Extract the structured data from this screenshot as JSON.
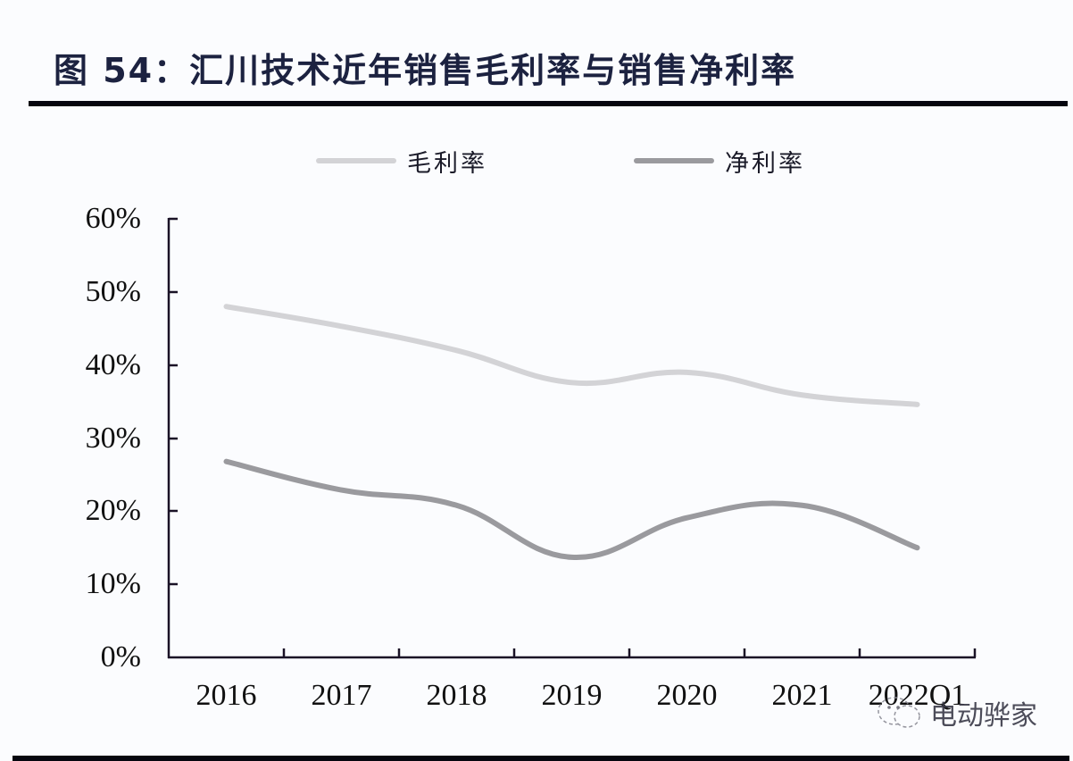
{
  "header": {
    "title": "图 54：汇川技术近年销售毛利率与销售净利率"
  },
  "legend": {
    "items": [
      {
        "label": "毛利率",
        "color": "#d3d3d6"
      },
      {
        "label": "净利率",
        "color": "#9a9a9e"
      }
    ]
  },
  "axes": {
    "y_ticks": [
      "60%",
      "50%",
      "40%",
      "30%",
      "20%",
      "10%",
      "0%"
    ],
    "x_ticks": [
      "2016",
      "2017",
      "2018",
      "2019",
      "2020",
      "2021",
      "2022Q1"
    ]
  },
  "watermark": {
    "text": "电动骅家",
    "icon": "wechat-icon"
  },
  "chart_data": {
    "type": "line",
    "title": "图 54：汇川技术近年销售毛利率与销售净利率",
    "xlabel": "",
    "ylabel": "",
    "categories": [
      "2016",
      "2017",
      "2018",
      "2019",
      "2020",
      "2021",
      "2022Q1"
    ],
    "series": [
      {
        "name": "毛利率",
        "color": "#d3d3d6",
        "values": [
          48.0,
          45.3,
          42.0,
          37.6,
          39.0,
          35.9,
          34.6
        ]
      },
      {
        "name": "净利率",
        "color": "#9a9a9e",
        "values": [
          26.8,
          22.9,
          20.8,
          13.7,
          19.1,
          20.8,
          15.0
        ]
      }
    ],
    "ylim": [
      0,
      60
    ],
    "y_tick_step": 10,
    "y_unit": "%",
    "grid": false,
    "legend_position": "top",
    "smooth": true
  }
}
